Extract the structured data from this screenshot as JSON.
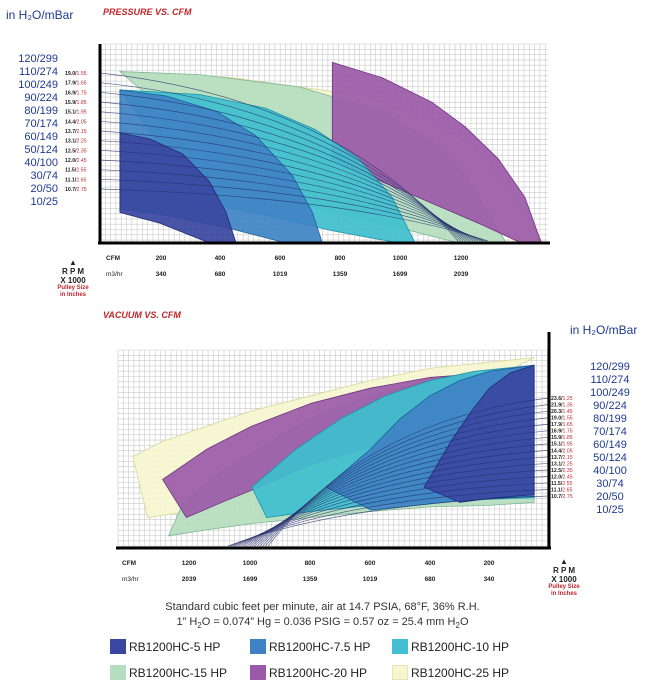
{
  "chart_data": [
    {
      "type": "area",
      "title": "PRESSURE VS. CFM",
      "unit_label": "in H₂O/mBar",
      "y_ticks": [
        "120/299",
        "110/274",
        "100/249",
        "90/224",
        "80/199",
        "70/174",
        "60/149",
        "50/124",
        "40/100",
        "30/74",
        "20/50",
        "10/25"
      ],
      "cfm_label": "CFM",
      "m3hr_label": "m3/hr",
      "x_ticks": [
        "200",
        "400",
        "600",
        "800",
        "1000",
        "1200"
      ],
      "m3hr_ticks": [
        "340",
        "680",
        "1019",
        "1359",
        "1699",
        "2039"
      ],
      "rpm_title": "R P M",
      "rpm_sub": "X 1000",
      "pulley_label": "Pulley Size",
      "pulley_sub": "in Inches",
      "speeds": [
        {
          "rpm": "19.0",
          "pulley": "1.55"
        },
        {
          "rpm": "17.9",
          "pulley": "1.65"
        },
        {
          "rpm": "16.9",
          "pulley": "1.75"
        },
        {
          "rpm": "15.9",
          "pulley": "1.85"
        },
        {
          "rpm": "15.1",
          "pulley": "1.95"
        },
        {
          "rpm": "14.4",
          "pulley": "2.05"
        },
        {
          "rpm": "13.7",
          "pulley": "2.15"
        },
        {
          "rpm": "13.1",
          "pulley": "2.25"
        },
        {
          "rpm": "12.5",
          "pulley": "2.35"
        },
        {
          "rpm": "12.0",
          "pulley": "2.45"
        },
        {
          "rpm": "11.5",
          "pulley": "2.55"
        },
        {
          "rpm": "11.1",
          "pulley": "2.65"
        },
        {
          "rpm": "10.7",
          "pulley": "2.75"
        }
      ],
      "xlim": [
        0,
        1350
      ],
      "ylim": [
        0,
        130
      ],
      "bands": [
        {
          "name": "RB1200HC-25 HP",
          "top": [
            [
              60,
              112
            ],
            [
              400,
              108
            ],
            [
              800,
              96
            ],
            [
              1000,
              80
            ],
            [
              1150,
              58
            ],
            [
              1250,
              30
            ],
            [
              1335,
              0
            ]
          ],
          "bottom": [
            [
              850,
              44
            ],
            [
              1000,
              30
            ],
            [
              1150,
              15
            ],
            [
              1260,
              0
            ]
          ]
        },
        {
          "name": "RB1200HC-15 HP",
          "top": [
            [
              60,
              112
            ],
            [
              300,
              110
            ],
            [
              600,
              102
            ],
            [
              850,
              86
            ],
            [
              1000,
              66
            ],
            [
              1100,
              44
            ],
            [
              1180,
              15
            ],
            [
              1225,
              0
            ]
          ],
          "bottom": [
            [
              500,
              30
            ],
            [
              700,
              20
            ],
            [
              900,
              10
            ],
            [
              1080,
              0
            ]
          ]
        },
        {
          "name": "RB1200HC-20 HP",
          "top": [
            [
              700,
              118
            ],
            [
              850,
              108
            ],
            [
              1000,
              92
            ],
            [
              1100,
              76
            ],
            [
              1200,
              55
            ],
            [
              1280,
              30
            ],
            [
              1330,
              0
            ]
          ],
          "bottom": [
            [
              700,
              55
            ],
            [
              850,
              40
            ],
            [
              1000,
              26
            ],
            [
              1150,
              12
            ],
            [
              1270,
              0
            ]
          ]
        },
        {
          "name": "RB1200HC-10 HP",
          "top": [
            [
              60,
              100
            ],
            [
              300,
              97
            ],
            [
              500,
              88
            ],
            [
              650,
              74
            ],
            [
              780,
              55
            ],
            [
              880,
              30
            ],
            [
              950,
              0
            ]
          ],
          "bottom": [
            [
              300,
              27
            ],
            [
              500,
              18
            ],
            [
              700,
              8
            ],
            [
              900,
              0
            ]
          ]
        },
        {
          "name": "RB1200HC-7.5 HP",
          "top": [
            [
              60,
              100
            ],
            [
              200,
              96
            ],
            [
              350,
              86
            ],
            [
              470,
              70
            ],
            [
              580,
              44
            ],
            [
              640,
              20
            ],
            [
              670,
              0
            ]
          ],
          "bottom": [
            [
              60,
              22
            ],
            [
              200,
              18
            ],
            [
              400,
              9
            ],
            [
              560,
              0
            ]
          ]
        },
        {
          "name": "RB1200HC-5 HP",
          "top": [
            [
              60,
              72
            ],
            [
              150,
              68
            ],
            [
              250,
              58
            ],
            [
              330,
              40
            ],
            [
              380,
              20
            ],
            [
              410,
              0
            ]
          ],
          "bottom": [
            [
              60,
              20
            ],
            [
              180,
              13
            ],
            [
              330,
              0
            ]
          ]
        }
      ]
    },
    {
      "type": "area",
      "title": "VACUUM VS. CFM",
      "unit_label": "in H₂O/mBar",
      "y_ticks": [
        "120/299",
        "110/274",
        "100/249",
        "90/224",
        "80/199",
        "70/174",
        "60/149",
        "50/124",
        "40/100",
        "30/74",
        "20/50",
        "10/25"
      ],
      "cfm_label": "CFM",
      "m3hr_label": "m3/hr",
      "x_ticks": [
        "1200",
        "1000",
        "800",
        "600",
        "400",
        "200"
      ],
      "m3hr_ticks": [
        "2039",
        "1699",
        "1359",
        "1019",
        "680",
        "340"
      ],
      "rpm_title": "R P M",
      "rpm_sub": "X 1000",
      "pulley_label": "Pulley Size",
      "pulley_sub": "in Inches",
      "speeds": [
        {
          "rpm": "23.6",
          "pulley": "1.25"
        },
        {
          "rpm": "21.9",
          "pulley": "1.35"
        },
        {
          "rpm": "20.3",
          "pulley": "1.45"
        },
        {
          "rpm": "19.0",
          "pulley": "1.55"
        },
        {
          "rpm": "17.9",
          "pulley": "1.65"
        },
        {
          "rpm": "16.9",
          "pulley": "1.75"
        },
        {
          "rpm": "15.9",
          "pulley": "1.85"
        },
        {
          "rpm": "15.1",
          "pulley": "1.95"
        },
        {
          "rpm": "14.4",
          "pulley": "2.05"
        },
        {
          "rpm": "13.7",
          "pulley": "2.15"
        },
        {
          "rpm": "13.1",
          "pulley": "2.25"
        },
        {
          "rpm": "12.5",
          "pulley": "2.35"
        },
        {
          "rpm": "12.0",
          "pulley": "2.45"
        },
        {
          "rpm": "11.5",
          "pulley": "2.55"
        },
        {
          "rpm": "11.1",
          "pulley": "2.65"
        },
        {
          "rpm": "10.7",
          "pulley": "2.75"
        }
      ],
      "xlim": [
        0,
        1450
      ],
      "ylim": [
        0,
        130
      ],
      "bands": [
        {
          "name": "RB1200HC-25 HP",
          "top": [
            [
              1400,
              60
            ],
            [
              1300,
              70
            ],
            [
              1150,
              80
            ],
            [
              1000,
              90
            ],
            [
              800,
              100
            ],
            [
              600,
              110
            ],
            [
              400,
              118
            ],
            [
              50,
              125
            ]
          ],
          "bottom": [
            [
              1350,
              20
            ],
            [
              1250,
              23
            ],
            [
              1100,
              30
            ],
            [
              1000,
              35
            ],
            [
              900,
              42
            ]
          ]
        },
        {
          "name": "RB1200HC-15 HP",
          "top": [
            [
              1230,
              30
            ],
            [
              1100,
              50
            ],
            [
              950,
              68
            ],
            [
              800,
              85
            ],
            [
              600,
              100
            ],
            [
              400,
              110
            ],
            [
              200,
              115
            ],
            [
              50,
              118
            ]
          ],
          "bottom": [
            [
              1280,
              8
            ],
            [
              1150,
              12
            ],
            [
              1000,
              16
            ],
            [
              800,
              20
            ],
            [
              600,
              24
            ],
            [
              400,
              27
            ],
            [
              200,
              28
            ],
            [
              50,
              30
            ]
          ]
        },
        {
          "name": "RB1200HC-20 HP",
          "top": [
            [
              1300,
              45
            ],
            [
              1150,
              65
            ],
            [
              1000,
              80
            ],
            [
              800,
              95
            ],
            [
              600,
              105
            ],
            [
              400,
              112
            ],
            [
              200,
              115
            ],
            [
              50,
              116
            ]
          ],
          "bottom": [
            [
              1220,
              20
            ],
            [
              1100,
              30
            ],
            [
              950,
              42
            ],
            [
              800,
              55
            ],
            [
              600,
              66
            ],
            [
              400,
              70
            ],
            [
              200,
              72
            ],
            [
              50,
              73
            ]
          ]
        },
        {
          "name": "RB1200HC-10 HP",
          "top": [
            [
              1000,
              40
            ],
            [
              850,
              65
            ],
            [
              700,
              85
            ],
            [
              550,
              100
            ],
            [
              400,
              110
            ],
            [
              250,
              116
            ],
            [
              50,
              120
            ]
          ],
          "bottom": [
            [
              950,
              20
            ],
            [
              800,
              24
            ],
            [
              600,
              28
            ],
            [
              400,
              30
            ],
            [
              200,
              32
            ],
            [
              50,
              33
            ]
          ]
        },
        {
          "name": "RB1200HC-7.5 HP",
          "top": [
            [
              750,
              40
            ],
            [
              600,
              65
            ],
            [
              500,
              85
            ],
            [
              400,
              100
            ],
            [
              300,
              110
            ],
            [
              200,
              116
            ],
            [
              50,
              120
            ]
          ],
          "bottom": [
            [
              600,
              25
            ],
            [
              450,
              28
            ],
            [
              300,
              31
            ],
            [
              150,
              33
            ],
            [
              50,
              34
            ]
          ]
        },
        {
          "name": "RB1200HC-5 HP",
          "top": [
            [
              420,
              40
            ],
            [
              330,
              70
            ],
            [
              260,
              90
            ],
            [
              200,
              105
            ],
            [
              130,
              115
            ],
            [
              50,
              120
            ]
          ],
          "bottom": [
            [
              300,
              30
            ],
            [
              180,
              33
            ],
            [
              50,
              35
            ]
          ]
        }
      ]
    }
  ],
  "footnote": {
    "line1": "Standard cubic feet per minute, air at 14.7 PSIA, 68°F, 36% R.H.",
    "line2_a": "1” H",
    "line2_sub1": "2",
    "line2_b": "O = 0.074” Hg = 0.036 PSIG = 0.57 oz = 25.4 mm H",
    "line2_sub2": "2",
    "line2_c": "O"
  },
  "legend": [
    {
      "label": "RB1200HC-5 HP",
      "color": "#3a47a0"
    },
    {
      "label": "RB1200HC-7.5 HP",
      "color": "#3f83c4"
    },
    {
      "label": "RB1200HC-10 HP",
      "color": "#3fbfcf"
    },
    {
      "label": "RB1200HC-15 HP",
      "color": "#b5ddbf"
    },
    {
      "label": "RB1200HC-20 HP",
      "color": "#9b5aa8"
    },
    {
      "label": "RB1200HC-25 HP",
      "color": "#f6f6cf"
    }
  ]
}
